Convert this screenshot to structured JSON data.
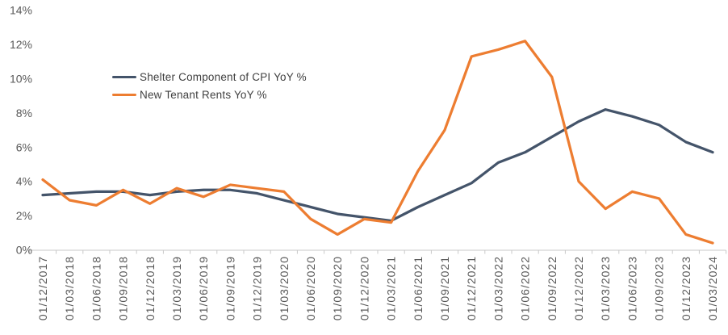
{
  "chart_data": {
    "type": "line",
    "title": "",
    "categories": [
      "01/12/2017",
      "01/03/2018",
      "01/06/2018",
      "01/09/2018",
      "01/12/2018",
      "01/03/2019",
      "01/06/2019",
      "01/09/2019",
      "01/12/2019",
      "01/03/2020",
      "01/06/2020",
      "01/09/2020",
      "01/12/2020",
      "01/03/2021",
      "01/06/2021",
      "01/09/2021",
      "01/12/2021",
      "01/03/2022",
      "01/06/2022",
      "01/09/2022",
      "01/12/2022",
      "01/03/2023",
      "01/06/2023",
      "01/09/2023",
      "01/12/2023",
      "01/03/2024"
    ],
    "series": [
      {
        "name": "Shelter Component of CPI YoY %",
        "color": "#44546A",
        "values": [
          3.2,
          3.3,
          3.4,
          3.4,
          3.2,
          3.4,
          3.5,
          3.5,
          3.3,
          2.9,
          2.5,
          2.1,
          1.9,
          1.7,
          2.5,
          3.2,
          3.9,
          5.1,
          5.7,
          6.6,
          7.5,
          8.2,
          7.8,
          7.3,
          6.3,
          5.7
        ]
      },
      {
        "name": "New Tenant Rents YoY %",
        "color": "#ED7D31",
        "values": [
          4.1,
          2.9,
          2.6,
          3.5,
          2.7,
          3.6,
          3.1,
          3.8,
          3.6,
          3.4,
          1.8,
          0.9,
          1.8,
          1.6,
          4.6,
          7.0,
          11.3,
          11.7,
          12.2,
          10.1,
          4.0,
          2.4,
          3.4,
          3.0,
          0.9,
          0.4
        ]
      }
    ],
    "ylim": [
      0,
      14
    ],
    "y_tick_step": 2,
    "y_tick_labels": [
      "0%",
      "2%",
      "4%",
      "6%",
      "8%",
      "10%",
      "12%",
      "14%"
    ],
    "x_label_rotation": -90,
    "grid": false,
    "legend_position": "inside-top-left"
  },
  "colors": {
    "background": "#FFFFFF",
    "axis_line": "#C9C9C9",
    "tick_mark": "#C9C9C9",
    "axis_text": "#595959",
    "legend_text": "#404040"
  }
}
